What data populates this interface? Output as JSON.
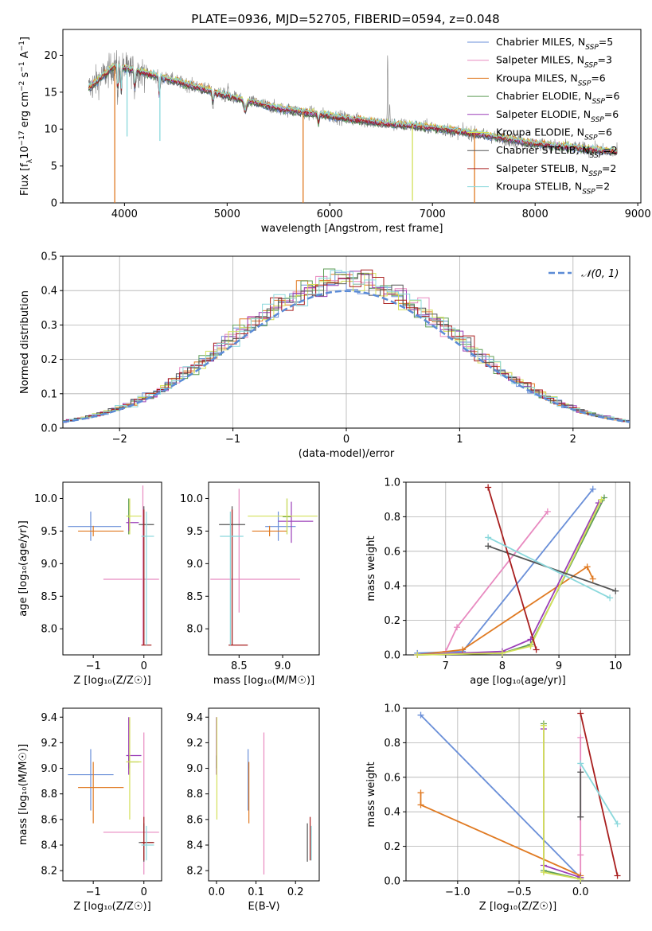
{
  "title": "PLATE=0936, MJD=52705, FIBERID=0594, z=0.048",
  "colors": {
    "Chabrier MILES": "#6a8fd8",
    "Salpeter MILES": "#e88ac0",
    "Kroupa MILES": "#e07a22",
    "Chabrier ELODIE": "#5f9d57",
    "Salpeter ELODIE": "#9b3fb8",
    "Kroupa ELODIE": "#d3e05a",
    "Chabrier STELIB": "#555555",
    "Salpeter STELIB": "#a81e1e",
    "Kroupa STELIB": "#8ad8dc",
    "data": "#808080",
    "normal": "#5b8bd6"
  },
  "chart_data": [
    {
      "type": "line",
      "panel": "spectrum",
      "xlabel": "wavelength [Angstrom, rest frame]",
      "ylabel": "Flux [f",
      "ylabel_parts": [
        "Flux [f",
        "λ",
        "10",
        "−17",
        " erg cm",
        "−2",
        " s",
        "−1",
        " A",
        "−1",
        "]"
      ],
      "xlim": [
        3400,
        9030
      ],
      "ylim": [
        0,
        23.5
      ],
      "xticks": [
        4000,
        5000,
        6000,
        7000,
        8000,
        9000
      ],
      "yticks": [
        0,
        5,
        10,
        15,
        20
      ],
      "legend_position": "top-right",
      "legend": [
        {
          "name": "Chabrier MILES",
          "lab": "Chabrier MILES, N",
          "sub": "SSP",
          "val": "=5"
        },
        {
          "name": "Salpeter MILES",
          "lab": "Salpeter MILES, N",
          "sub": "SSP",
          "val": "=3"
        },
        {
          "name": "Kroupa MILES",
          "lab": "Kroupa MILES, N",
          "sub": "SSP",
          "val": "=6"
        },
        {
          "name": "Chabrier ELODIE",
          "lab": "Chabrier ELODIE, N",
          "sub": "SSP",
          "val": "=6"
        },
        {
          "name": "Salpeter ELODIE",
          "lab": "Salpeter ELODIE, N",
          "sub": "SSP",
          "val": "=6"
        },
        {
          "name": "Kroupa ELODIE",
          "lab": "Kroupa ELODIE, N",
          "sub": "SSP",
          "val": "=6"
        },
        {
          "name": "Chabrier STELIB",
          "lab": "Chabrier STELIB, N",
          "sub": "SSP",
          "val": "=2"
        },
        {
          "name": "Salpeter STELIB",
          "lab": "Salpeter STELIB, N",
          "sub": "SSP",
          "val": "=2"
        },
        {
          "name": "Kroupa STELIB",
          "lab": "Kroupa STELIB, N",
          "sub": "SSP",
          "val": "=2"
        }
      ],
      "continuum_x": [
        3650,
        3900,
        4100,
        4500,
        5000,
        5500,
        6000,
        6500,
        7000,
        7500,
        8000,
        8500,
        8800
      ],
      "continuum_y": [
        15.5,
        18.5,
        18.0,
        16.5,
        14.5,
        12.8,
        11.8,
        10.8,
        10.2,
        9.2,
        8.0,
        7.3,
        6.9
      ],
      "data_spikes": [
        [
          4861,
          14.2
        ],
        [
          5007,
          16.2
        ],
        [
          6563,
          20.5
        ],
        [
          6583,
          13.5
        ]
      ],
      "model_dips": [
        {
          "x": 3905,
          "y": 0,
          "series": "Kroupa MILES"
        },
        {
          "x": 4025,
          "y": 9.0,
          "series": "Kroupa STELIB"
        },
        {
          "x": 4345,
          "y": 8.4,
          "series": "Kroupa STELIB"
        },
        {
          "x": 5740,
          "y": 0,
          "series": "Kroupa MILES"
        },
        {
          "x": 6805,
          "y": 0.3,
          "series": "Kroupa ELODIE"
        },
        {
          "x": 7410,
          "y": 0,
          "series": "Kroupa MILES"
        }
      ]
    },
    {
      "type": "step",
      "panel": "residual-distribution",
      "xlabel": "(data-model)/error",
      "ylabel": "Normed distribution",
      "xlim": [
        -2.5,
        2.5
      ],
      "ylim": [
        0,
        0.5
      ],
      "xticks": [
        -2,
        -1,
        0,
        1,
        2
      ],
      "yticks": [
        0.0,
        0.1,
        0.2,
        0.3,
        0.4,
        0.5
      ],
      "grid": true,
      "legend": "𝒩(0, 1)",
      "legend_position": "top-right",
      "bin_width": 0.1
    },
    {
      "type": "errorbar",
      "panel": "age-vs-Z",
      "xlabel": "Z [log₁₀(Z/Z☉)]",
      "ylabel": "age  [log₁₀(age/yr)]",
      "xlim": [
        -1.6,
        0.35
      ],
      "ylim": [
        7.6,
        10.25
      ],
      "xticks": [
        -1,
        0
      ],
      "yticks": [
        8.0,
        8.5,
        9.0,
        9.5,
        10.0
      ],
      "points": [
        {
          "s": "Chabrier MILES",
          "x": -1.05,
          "y": 9.57,
          "xe": [
            -1.5,
            -0.45
          ],
          "ye": [
            9.35,
            9.8
          ]
        },
        {
          "s": "Kroupa MILES",
          "x": -1.0,
          "y": 9.5,
          "xe": [
            -1.3,
            -0.4
          ],
          "ye": [
            9.42,
            9.58
          ]
        },
        {
          "s": "Salpeter MILES",
          "x": -0.02,
          "y": 8.76,
          "xe": [
            -0.8,
            0.3
          ],
          "ye": [
            7.75,
            10.2
          ]
        },
        {
          "s": "Chabrier ELODIE",
          "x": -0.3,
          "y": 9.72,
          "xe": [
            -0.3,
            -0.3
          ],
          "ye": [
            9.45,
            10.0
          ]
        },
        {
          "s": "Salpeter ELODIE",
          "x": -0.3,
          "y": 9.63,
          "xe": [
            -0.35,
            -0.1
          ],
          "ye": [
            9.5,
            9.7
          ]
        },
        {
          "s": "Kroupa ELODIE",
          "x": -0.28,
          "y": 9.73,
          "xe": [
            -0.35,
            -0.05
          ],
          "ye": [
            9.45,
            10.0
          ]
        },
        {
          "s": "Chabrier STELIB",
          "x": 0.0,
          "y": 9.6,
          "xe": [
            -0.1,
            0.2
          ],
          "ye": [
            7.75,
            9.88
          ]
        },
        {
          "s": "Salpeter STELIB",
          "x": 0.0,
          "y": 7.75,
          "xe": [
            -0.05,
            0.15
          ],
          "ye": [
            7.75,
            9.83
          ]
        },
        {
          "s": "Kroupa STELIB",
          "x": 0.05,
          "y": 9.42,
          "xe": [
            -0.05,
            0.2
          ],
          "ye": [
            7.75,
            9.8
          ]
        }
      ]
    },
    {
      "type": "errorbar",
      "panel": "age-vs-mass",
      "xlabel": "mass [log₁₀(M/M☉)]",
      "ylabel": "",
      "xlim": [
        8.15,
        9.42
      ],
      "ylim": [
        7.6,
        10.25
      ],
      "xticks": [
        8.5,
        9.0
      ],
      "yticks": [
        8.0,
        8.5,
        9.0,
        9.5,
        10.0
      ],
      "points": [
        {
          "s": "Chabrier MILES",
          "x": 8.95,
          "y": 9.57,
          "xe": [
            8.8,
            9.15
          ],
          "ye": [
            9.35,
            9.8
          ]
        },
        {
          "s": "Kroupa MILES",
          "x": 8.85,
          "y": 9.5,
          "xe": [
            8.65,
            9.05
          ],
          "ye": [
            9.42,
            9.58
          ]
        },
        {
          "s": "Salpeter MILES",
          "x": 8.5,
          "y": 8.76,
          "xe": [
            8.17,
            9.2
          ],
          "ye": [
            8.25,
            10.15
          ]
        },
        {
          "s": "Chabrier ELODIE",
          "x": 9.05,
          "y": 9.72,
          "xe": [
            9.0,
            9.1
          ],
          "ye": [
            9.45,
            10.0
          ]
        },
        {
          "s": "Salpeter ELODIE",
          "x": 9.1,
          "y": 9.65,
          "xe": [
            8.95,
            9.35
          ],
          "ye": [
            9.32,
            9.95
          ]
        },
        {
          "s": "Kroupa ELODIE",
          "x": 9.05,
          "y": 9.73,
          "xe": [
            8.6,
            9.4
          ],
          "ye": [
            9.45,
            10.0
          ]
        },
        {
          "s": "Chabrier STELIB",
          "x": 8.42,
          "y": 9.6,
          "xe": [
            8.27,
            8.57
          ],
          "ye": [
            7.75,
            9.88
          ]
        },
        {
          "s": "Salpeter STELIB",
          "x": 8.42,
          "y": 7.75,
          "xe": [
            8.38,
            8.6
          ],
          "ye": [
            7.75,
            9.83
          ]
        },
        {
          "s": "Kroupa STELIB",
          "x": 8.4,
          "y": 9.42,
          "xe": [
            8.28,
            8.55
          ],
          "ye": [
            7.75,
            9.8
          ]
        }
      ]
    },
    {
      "type": "line",
      "panel": "mass-weight-vs-age",
      "xlabel": "age  [log₁₀(age/yr)]",
      "ylabel": "mass weight",
      "xlim": [
        6.3,
        10.25
      ],
      "ylim": [
        0.0,
        1.0
      ],
      "xticks": [
        7,
        8,
        9,
        10
      ],
      "yticks": [
        0.0,
        0.2,
        0.4,
        0.6,
        0.8,
        1.0
      ],
      "grid": true,
      "series": [
        {
          "name": "Chabrier MILES",
          "x": [
            6.5,
            7.3,
            9.6
          ],
          "y": [
            0.01,
            0.02,
            0.96
          ]
        },
        {
          "name": "Salpeter MILES",
          "x": [
            7.0,
            7.2,
            8.8
          ],
          "y": [
            0.02,
            0.16,
            0.83
          ]
        },
        {
          "name": "Kroupa MILES",
          "x": [
            6.5,
            7.3,
            9.5,
            9.6
          ],
          "y": [
            0.0,
            0.03,
            0.51,
            0.44
          ]
        },
        {
          "name": "Chabrier ELODIE",
          "x": [
            6.5,
            8.0,
            8.5,
            9.8
          ],
          "y": [
            0.0,
            0.01,
            0.06,
            0.91
          ]
        },
        {
          "name": "Salpeter ELODIE",
          "x": [
            6.5,
            8.0,
            8.5,
            9.7
          ],
          "y": [
            0.0,
            0.02,
            0.09,
            0.88
          ]
        },
        {
          "name": "Kroupa ELODIE",
          "x": [
            6.5,
            8.0,
            8.5,
            9.75
          ],
          "y": [
            0.0,
            0.01,
            0.05,
            0.9
          ]
        },
        {
          "name": "Chabrier STELIB",
          "x": [
            7.75,
            10.0
          ],
          "y": [
            0.63,
            0.37
          ]
        },
        {
          "name": "Salpeter STELIB",
          "x": [
            7.75,
            8.6
          ],
          "y": [
            0.97,
            0.03
          ]
        },
        {
          "name": "Kroupa STELIB",
          "x": [
            7.75,
            9.9
          ],
          "y": [
            0.68,
            0.33
          ]
        }
      ]
    },
    {
      "type": "errorbar",
      "panel": "mass-vs-Z",
      "xlabel": "Z [log₁₀(Z/Z☉)]",
      "ylabel": "mass [log₁₀(M/M☉)]",
      "xlim": [
        -1.6,
        0.35
      ],
      "ylim": [
        8.12,
        9.47
      ],
      "xticks": [
        -1,
        0
      ],
      "yticks": [
        8.2,
        8.4,
        8.6,
        8.8,
        9.0,
        9.2,
        9.4
      ],
      "points": [
        {
          "s": "Chabrier MILES",
          "x": -1.05,
          "y": 8.95,
          "xe": [
            -1.5,
            -0.6
          ],
          "ye": [
            8.67,
            9.15
          ]
        },
        {
          "s": "Kroupa MILES",
          "x": -1.0,
          "y": 8.85,
          "xe": [
            -1.3,
            -0.4
          ],
          "ye": [
            8.57,
            9.05
          ]
        },
        {
          "s": "Salpeter MILES",
          "x": 0.0,
          "y": 8.5,
          "xe": [
            -0.8,
            0.3
          ],
          "ye": [
            8.17,
            9.28
          ]
        },
        {
          "s": "Chabrier ELODIE",
          "x": -0.3,
          "y": 9.05,
          "xe": [
            -0.3,
            -0.1
          ],
          "ye": [
            9.0,
            9.1
          ]
        },
        {
          "s": "Salpeter ELODIE",
          "x": -0.3,
          "y": 9.1,
          "xe": [
            -0.35,
            -0.05
          ],
          "ye": [
            8.95,
            9.4
          ]
        },
        {
          "s": "Kroupa ELODIE",
          "x": -0.28,
          "y": 9.05,
          "xe": [
            -0.35,
            -0.05
          ],
          "ye": [
            8.6,
            9.4
          ]
        },
        {
          "s": "Chabrier STELIB",
          "x": 0.0,
          "y": 8.42,
          "xe": [
            -0.1,
            0.2
          ],
          "ye": [
            8.27,
            8.57
          ]
        },
        {
          "s": "Salpeter STELIB",
          "x": 0.0,
          "y": 8.42,
          "xe": [
            -0.05,
            0.2
          ],
          "ye": [
            8.28,
            8.62
          ]
        },
        {
          "s": "Kroupa STELIB",
          "x": 0.05,
          "y": 8.4,
          "xe": [
            -0.05,
            0.2
          ],
          "ye": [
            8.28,
            8.55
          ]
        }
      ]
    },
    {
      "type": "errorbar",
      "panel": "mass-vs-ebv",
      "xlabel": "E(B-V)",
      "ylabel": "",
      "xlim": [
        -0.02,
        0.26
      ],
      "ylim": [
        8.12,
        9.47
      ],
      "xticks": [
        0.0,
        0.1,
        0.2
      ],
      "yticks": [
        8.2,
        8.4,
        8.6,
        8.8,
        9.0,
        9.2,
        9.4
      ],
      "points": [
        {
          "s": "Chabrier MILES",
          "x": 0.08,
          "y": 8.95,
          "ye": [
            8.67,
            9.15
          ]
        },
        {
          "s": "Kroupa MILES",
          "x": 0.082,
          "y": 8.85,
          "ye": [
            8.57,
            9.05
          ]
        },
        {
          "s": "Salpeter MILES",
          "x": 0.12,
          "y": 8.5,
          "ye": [
            8.17,
            9.28
          ]
        },
        {
          "s": "Chabrier ELODIE",
          "x": 0.0,
          "y": 9.05,
          "ye": [
            9.0,
            9.1
          ]
        },
        {
          "s": "Salpeter ELODIE",
          "x": 0.0,
          "y": 9.1,
          "ye": [
            8.95,
            9.4
          ]
        },
        {
          "s": "Kroupa ELODIE",
          "x": 0.001,
          "y": 9.05,
          "ye": [
            8.6,
            9.4
          ]
        },
        {
          "s": "Chabrier STELIB",
          "x": 0.23,
          "y": 8.42,
          "ye": [
            8.27,
            8.57
          ]
        },
        {
          "s": "Salpeter STELIB",
          "x": 0.237,
          "y": 8.42,
          "ye": [
            8.28,
            8.62
          ]
        },
        {
          "s": "Kroupa STELIB",
          "x": 0.24,
          "y": 8.4,
          "ye": [
            8.28,
            8.55
          ]
        }
      ]
    },
    {
      "type": "line",
      "panel": "mass-weight-vs-Z",
      "xlabel": "Z [log₁₀(Z/Z☉)]",
      "ylabel": "mass weight",
      "xlim": [
        -1.42,
        0.4
      ],
      "ylim": [
        0.0,
        1.0
      ],
      "xticks": [
        -1.0,
        -0.5,
        0.0
      ],
      "yticks": [
        0.0,
        0.2,
        0.4,
        0.6,
        0.8,
        1.0
      ],
      "grid": true,
      "series": [
        {
          "name": "Chabrier MILES",
          "x": [
            -1.3,
            0.0
          ],
          "y": [
            0.96,
            0.02
          ]
        },
        {
          "name": "Salpeter MILES",
          "x": [
            0.0,
            0.0,
            0.0
          ],
          "y": [
            0.15,
            0.02,
            0.83
          ]
        },
        {
          "name": "Kroupa MILES",
          "x": [
            -1.3,
            -1.3,
            0.0
          ],
          "y": [
            0.51,
            0.44,
            0.03
          ]
        },
        {
          "name": "Chabrier ELODIE",
          "x": [
            -0.3,
            -0.3,
            0.0
          ],
          "y": [
            0.91,
            0.06,
            0.01
          ]
        },
        {
          "name": "Salpeter ELODIE",
          "x": [
            -0.3,
            -0.3,
            0.0
          ],
          "y": [
            0.88,
            0.09,
            0.02
          ]
        },
        {
          "name": "Kroupa ELODIE",
          "x": [
            -0.3,
            -0.3,
            0.0
          ],
          "y": [
            0.9,
            0.05,
            0.01
          ]
        },
        {
          "name": "Chabrier STELIB",
          "x": [
            0.0,
            0.0
          ],
          "y": [
            0.63,
            0.37
          ]
        },
        {
          "name": "Salpeter STELIB",
          "x": [
            0.0,
            0.3
          ],
          "y": [
            0.97,
            0.03
          ]
        },
        {
          "name": "Kroupa STELIB",
          "x": [
            0.0,
            0.3
          ],
          "y": [
            0.68,
            0.33
          ]
        }
      ]
    }
  ]
}
